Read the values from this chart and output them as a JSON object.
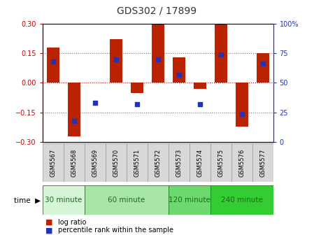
{
  "title": "GDS302 / 17899",
  "samples": [
    "GSM5567",
    "GSM5568",
    "GSM5569",
    "GSM5570",
    "GSM5571",
    "GSM5572",
    "GSM5573",
    "GSM5574",
    "GSM5575",
    "GSM5576",
    "GSM5577"
  ],
  "log_ratio": [
    0.18,
    -0.27,
    0.0,
    0.22,
    -0.05,
    0.3,
    0.13,
    -0.03,
    0.3,
    -0.22,
    0.15
  ],
  "percentile": [
    68,
    18,
    33,
    70,
    32,
    70,
    57,
    32,
    74,
    24,
    66
  ],
  "groups": [
    {
      "label": "30 minute",
      "start": 0,
      "end": 2,
      "color": "#d6f5d6"
    },
    {
      "label": "60 minute",
      "start": 2,
      "end": 6,
      "color": "#a8e6a8"
    },
    {
      "label": "120 minute",
      "start": 6,
      "end": 8,
      "color": "#6dd86d"
    },
    {
      "label": "240 minute",
      "start": 8,
      "end": 11,
      "color": "#33cc33"
    }
  ],
  "bar_color": "#bb2200",
  "dot_color": "#2233bb",
  "ylim_min": -0.3,
  "ylim_max": 0.3,
  "y_ticks_left": [
    -0.3,
    -0.15,
    0,
    0.15,
    0.3
  ],
  "y_ticks_right": [
    0,
    25,
    50,
    75,
    100
  ],
  "background_color": "#ffffff",
  "time_label": "time"
}
